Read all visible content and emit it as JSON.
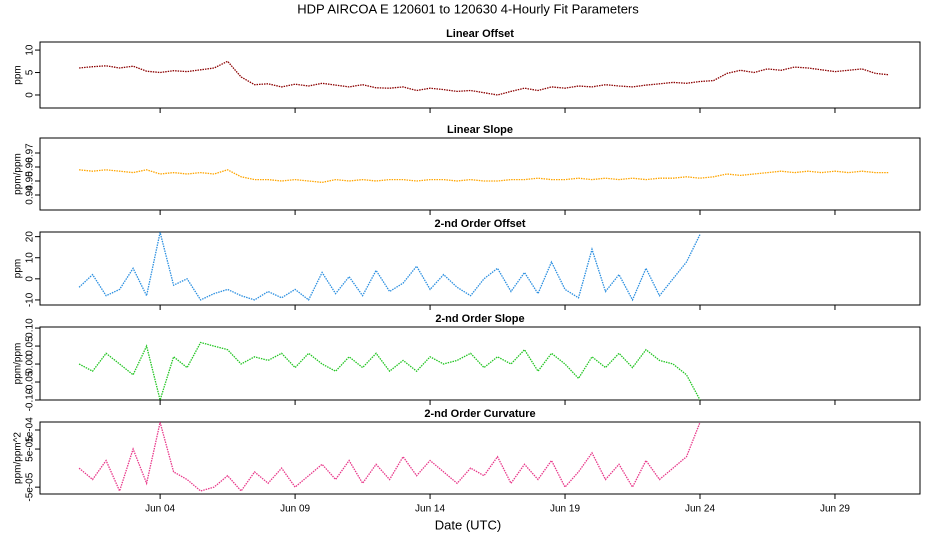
{
  "title": "HDP   AIRCOA E   120601 to 120630   4-Hourly Fit Parameters",
  "xlabel": "Date (UTC)",
  "chart_data": [
    {
      "type": "line",
      "title": "Linear Offset",
      "ylabel": "ppm",
      "x": [
        1,
        1.5,
        2,
        2.5,
        3,
        3.5,
        4,
        4.5,
        5,
        5.5,
        6,
        6.5,
        7,
        7.5,
        8,
        8.5,
        9,
        9.5,
        10,
        10.5,
        11,
        11.5,
        12,
        12.5,
        13,
        13.5,
        14,
        14.5,
        15,
        15.5,
        16,
        16.5,
        17,
        17.5,
        18,
        18.5,
        19,
        19.5,
        20,
        20.5,
        21,
        21.5,
        22,
        22.5,
        23,
        23.5,
        24,
        24.5,
        25,
        25.5,
        26,
        26.5,
        27,
        27.5,
        28,
        28.5,
        29,
        29.5,
        30,
        30.5,
        31
      ],
      "series": [
        {
          "color": "#8b0000",
          "values": [
            6.0,
            6.3,
            6.5,
            6.0,
            6.4,
            5.3,
            5.0,
            5.4,
            5.2,
            5.6,
            6.0,
            7.5,
            4.0,
            2.3,
            2.5,
            1.8,
            2.4,
            2.0,
            2.6,
            2.2,
            1.8,
            2.3,
            1.6,
            1.5,
            1.8,
            1.0,
            1.5,
            1.2,
            0.8,
            1.0,
            0.5,
            0.0,
            0.8,
            1.5,
            1.0,
            1.8,
            1.5,
            2.0,
            1.8,
            2.3,
            2.0,
            1.8,
            2.2,
            2.5,
            2.8,
            2.6,
            3.0,
            3.2,
            4.8,
            5.5,
            5.0,
            5.8,
            5.5,
            6.2,
            6.0,
            5.6,
            5.2,
            5.5,
            5.8,
            4.8,
            4.5
          ]
        }
      ],
      "xlim": [
        -0.45,
        32.15
      ],
      "xticks": [
        4,
        9,
        14,
        19,
        24,
        29
      ],
      "ylim": [
        -2.9,
        11.8
      ],
      "yticks": [
        0,
        5,
        10
      ]
    },
    {
      "type": "line",
      "title": "Linear Slope",
      "ylabel": "ppm/ppm",
      "x": [
        1,
        1.5,
        2,
        2.5,
        3,
        3.5,
        4,
        4.5,
        5,
        5.5,
        6,
        6.5,
        7,
        7.5,
        8,
        8.5,
        9,
        9.5,
        10,
        10.5,
        11,
        11.5,
        12,
        12.5,
        13,
        13.5,
        14,
        14.5,
        15,
        15.5,
        16,
        16.5,
        17,
        17.5,
        18,
        18.5,
        19,
        19.5,
        20,
        20.5,
        21,
        21.5,
        22,
        22.5,
        23,
        23.5,
        24,
        24.5,
        25,
        25.5,
        26,
        26.5,
        27,
        27.5,
        28,
        28.5,
        29,
        29.5,
        30,
        30.5,
        31
      ],
      "series": [
        {
          "color": "#ffa500",
          "values": [
            0.958,
            0.957,
            0.958,
            0.957,
            0.956,
            0.958,
            0.955,
            0.956,
            0.955,
            0.956,
            0.955,
            0.958,
            0.953,
            0.951,
            0.951,
            0.95,
            0.951,
            0.95,
            0.949,
            0.951,
            0.95,
            0.951,
            0.95,
            0.951,
            0.951,
            0.95,
            0.951,
            0.951,
            0.95,
            0.951,
            0.95,
            0.95,
            0.951,
            0.951,
            0.952,
            0.951,
            0.951,
            0.952,
            0.951,
            0.952,
            0.951,
            0.952,
            0.951,
            0.952,
            0.952,
            0.953,
            0.952,
            0.953,
            0.955,
            0.954,
            0.955,
            0.956,
            0.957,
            0.956,
            0.957,
            0.956,
            0.957,
            0.956,
            0.957,
            0.956,
            0.956
          ]
        }
      ],
      "xlim": [
        -0.45,
        32.15
      ],
      "xticks": [
        4,
        9,
        14,
        19,
        24,
        29
      ],
      "ylim": [
        0.9293,
        0.9807
      ],
      "yticks": [
        0.94,
        0.95,
        0.96,
        0.97
      ]
    },
    {
      "type": "line",
      "title": "2-nd Order Offset",
      "ylabel": "ppm",
      "x": [
        1,
        1.5,
        2,
        2.5,
        3,
        3.5,
        4,
        4.5,
        5,
        5.5,
        6,
        6.5,
        7,
        7.5,
        8,
        8.5,
        9,
        9.5,
        10,
        10.5,
        11,
        11.5,
        12,
        12.5,
        13,
        13.5,
        14,
        14.5,
        15,
        15.5,
        16,
        16.5,
        17,
        17.5,
        18,
        18.5,
        19,
        19.5,
        20,
        20.5,
        21,
        21.5,
        22,
        22.5,
        23,
        23.5,
        24
      ],
      "series": [
        {
          "color": "#2b8fe0",
          "values": [
            -4,
            2,
            -8,
            -5,
            5,
            -8,
            22,
            -3,
            0,
            -10,
            -7,
            -5,
            -8,
            -10,
            -6,
            -9,
            -5,
            -10,
            3,
            -7,
            1,
            -8,
            4,
            -6,
            -2,
            6,
            -5,
            2,
            -4,
            -8,
            0,
            5,
            -6,
            3,
            -7,
            8,
            -5,
            -9,
            14,
            -6,
            2,
            -10,
            5,
            -8,
            0,
            8,
            21
          ]
        }
      ],
      "xlim": [
        -0.45,
        32.15
      ],
      "xticks": [
        4,
        9,
        14,
        19,
        24,
        29
      ],
      "ylim": [
        -12.4,
        22.2
      ],
      "yticks": [
        -10,
        0,
        10,
        20
      ]
    },
    {
      "type": "line",
      "title": "2-nd Order Slope",
      "ylabel": "ppm/ppm",
      "x": [
        1,
        1.5,
        2,
        2.5,
        3,
        3.5,
        4,
        4.5,
        5,
        5.5,
        6,
        6.5,
        7,
        7.5,
        8,
        8.5,
        9,
        9.5,
        10,
        10.5,
        11,
        11.5,
        12,
        12.5,
        13,
        13.5,
        14,
        14.5,
        15,
        15.5,
        16,
        16.5,
        17,
        17.5,
        18,
        18.5,
        19,
        19.5,
        20,
        20.5,
        21,
        21.5,
        22,
        22.5,
        23,
        23.5,
        24
      ],
      "series": [
        {
          "color": "#22c522",
          "values": [
            0.0,
            -0.02,
            0.03,
            0.0,
            -0.03,
            0.05,
            -0.1,
            0.02,
            -0.01,
            0.06,
            0.05,
            0.04,
            0.0,
            0.02,
            0.01,
            0.03,
            -0.01,
            0.03,
            0.0,
            -0.02,
            0.02,
            -0.01,
            0.03,
            -0.02,
            0.01,
            -0.02,
            0.02,
            0.0,
            0.01,
            0.03,
            -0.01,
            0.02,
            0.0,
            0.04,
            -0.02,
            0.03,
            0.0,
            -0.04,
            0.02,
            -0.01,
            0.03,
            -0.01,
            0.04,
            0.01,
            0.0,
            -0.03,
            -0.1
          ]
        }
      ],
      "xlim": [
        -0.45,
        32.15
      ],
      "xticks": [
        4,
        9,
        14,
        19,
        24,
        29
      ],
      "ylim": [
        -0.1,
        0.103
      ],
      "yticks": [
        {
          "value": -0.1,
          "label": "-0.10"
        },
        {
          "value": -0.05,
          "label": "-0.05"
        },
        {
          "value": 0,
          "label": "0.00"
        },
        {
          "value": 0.05,
          "label": "0.05"
        },
        {
          "value": 0.1,
          "label": "0.10"
        }
      ]
    },
    {
      "type": "line",
      "title": "2-nd Order Curvature",
      "ylabel": "ppm/ppm^2",
      "x": [
        1,
        1.5,
        2,
        2.5,
        3,
        3.5,
        4,
        4.5,
        5,
        5.5,
        6,
        6.5,
        7,
        7.5,
        8,
        8.5,
        9,
        9.5,
        10,
        10.5,
        11,
        11.5,
        12,
        12.5,
        13,
        13.5,
        14,
        14.5,
        15,
        15.5,
        16,
        16.5,
        17,
        17.5,
        18,
        18.5,
        19,
        19.5,
        20,
        20.5,
        21,
        21.5,
        22,
        22.5,
        23,
        23.5,
        24
      ],
      "series": [
        {
          "color": "#e8388a",
          "values": [
            0,
            -3e-05,
            2e-05,
            -6e-05,
            5e-05,
            -4e-05,
            0.00012,
            -1e-05,
            -3e-05,
            -6e-05,
            -5e-05,
            -2e-05,
            -6e-05,
            -1e-05,
            -4e-05,
            0,
            -5e-05,
            -2e-05,
            1e-05,
            -3e-05,
            2e-05,
            -4e-05,
            1e-05,
            -3e-05,
            3e-05,
            -2e-05,
            2e-05,
            -1e-05,
            -4e-05,
            0,
            -2e-05,
            3e-05,
            -4e-05,
            1e-05,
            -3e-05,
            2e-05,
            -5e-05,
            -1e-05,
            4e-05,
            -3e-05,
            1e-05,
            -5e-05,
            2e-05,
            -3e-05,
            0,
            3e-05,
            0.00012
          ]
        }
      ],
      "xlim": [
        -0.45,
        32.15
      ],
      "xticks": [
        {
          "value": 4,
          "label": "Jun 04"
        },
        {
          "value": 9,
          "label": "Jun 09"
        },
        {
          "value": 14,
          "label": "Jun 14"
        },
        {
          "value": 19,
          "label": "Jun 19"
        },
        {
          "value": 24,
          "label": "Jun 24"
        },
        {
          "value": 29,
          "label": "Jun 29"
        }
      ],
      "ylim": [
        -6.8e-05,
        0.000121
      ],
      "yticks": [
        {
          "value": -5e-05,
          "label": "-5e-05"
        },
        {
          "value": 5e-05,
          "label": "5e-05"
        },
        {
          "value": 0.0001,
          "label": "1e-04"
        }
      ]
    }
  ]
}
